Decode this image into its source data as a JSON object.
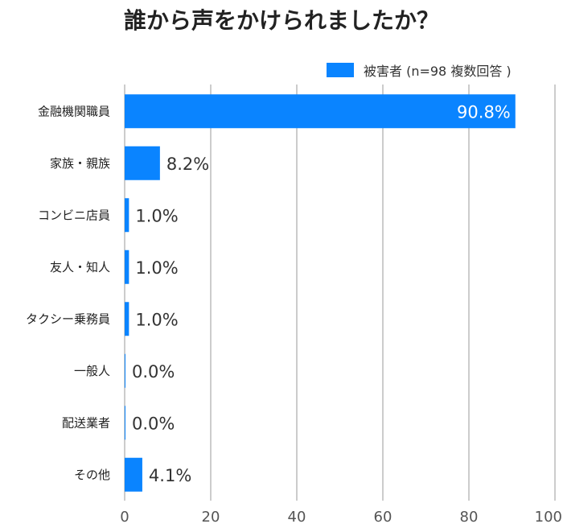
{
  "chart_data": {
    "type": "bar",
    "orientation": "horizontal",
    "title": "誰から声をかけられましたか？",
    "categories": [
      "金融機関職員",
      "家族・親族",
      "コンビニ店員",
      "友人・知人",
      "タクシー乗務員",
      "一般人",
      "配送業者",
      "その他"
    ],
    "series": [
      {
        "name": "被害者 (n=98 複数回答 )",
        "values": [
          90.8,
          8.2,
          1.0,
          1.0,
          1.0,
          0.0,
          0.0,
          4.1
        ],
        "labels": [
          "90.8%",
          "8.2%",
          "1.0%",
          "1.0%",
          "1.0%",
          "0.0%",
          "0.0%",
          "4.1%"
        ]
      }
    ],
    "xlim": [
      0,
      100
    ],
    "xticks": [
      "0",
      "20",
      "40",
      "60",
      "80",
      "100"
    ],
    "xlabel": "",
    "ylabel": "",
    "grid": true,
    "legend_position": "top-right",
    "colors": {
      "bar": "#0a84ff",
      "grid": "#cccccc",
      "label_inside": "#ffffff",
      "label_outside": "#333333"
    }
  }
}
